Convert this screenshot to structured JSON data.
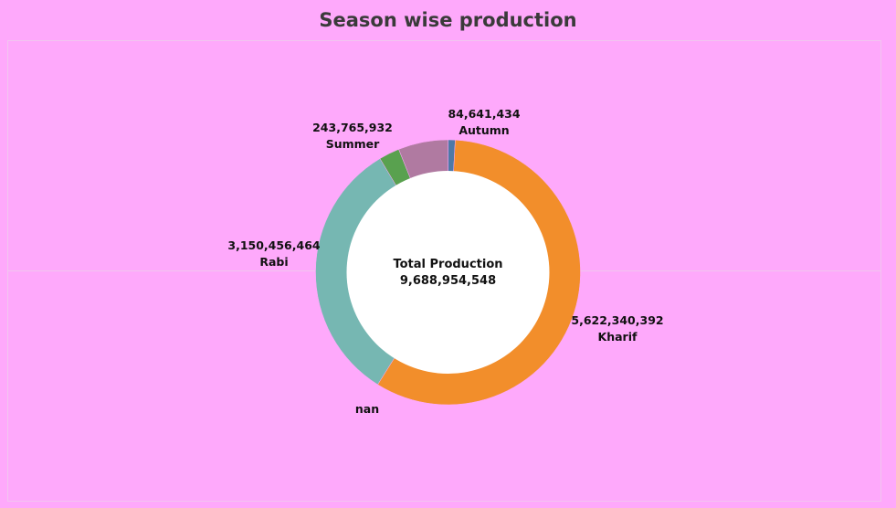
{
  "chart_data": {
    "type": "pie",
    "style": "donut",
    "title": "Season wise production",
    "center_label": "Total Production",
    "center_value": "9,688,954,548",
    "slices": [
      {
        "name": "Autumn",
        "value": 84641434,
        "value_label": "84,641,434",
        "color": "#4E79A7"
      },
      {
        "name": "Kharif",
        "value": 5622340392,
        "value_label": "5,622,340,392",
        "color": "#F28E2B"
      },
      {
        "name": "Rabi",
        "value": 3150456464,
        "value_label": "3,150,456,464",
        "color": "#76B7B2"
      },
      {
        "name": "Summer",
        "value": 243765932,
        "value_label": "243,765,932",
        "color": "#59A14F"
      },
      {
        "name": "nan",
        "value": 587750326,
        "value_label": "",
        "color": "#B07AA1"
      }
    ]
  }
}
